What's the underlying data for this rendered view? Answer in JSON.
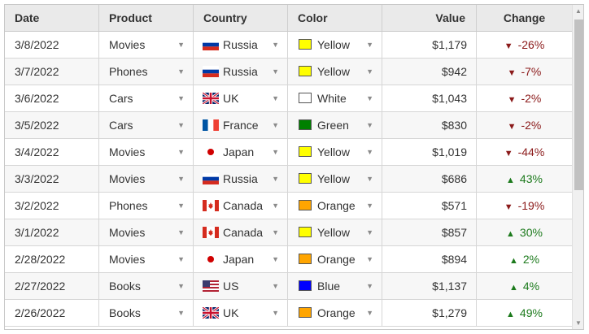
{
  "columns": {
    "date": "Date",
    "product": "Product",
    "country": "Country",
    "color": "Color",
    "value": "Value",
    "change": "Change"
  },
  "icons": {
    "dropdown": "▼",
    "up": "▲",
    "down": "▼"
  },
  "colors": {
    "down": "#8b1a1a",
    "up": "#1c7a1c",
    "header_bg": "#eaeaea",
    "alt_row_bg": "#f7f7f7"
  },
  "rows": [
    {
      "date": "3/8/2022",
      "product": "Movies",
      "country": "Russia",
      "flag": "russia",
      "color": "Yellow",
      "swatch": "#ffff00",
      "value": "$1,179",
      "trend": "down",
      "change": "-26%"
    },
    {
      "date": "3/7/2022",
      "product": "Phones",
      "country": "Russia",
      "flag": "russia",
      "color": "Yellow",
      "swatch": "#ffff00",
      "value": "$942",
      "trend": "down",
      "change": "-7%"
    },
    {
      "date": "3/6/2022",
      "product": "Cars",
      "country": "UK",
      "flag": "uk",
      "color": "White",
      "swatch": "#ffffff",
      "value": "$1,043",
      "trend": "down",
      "change": "-2%"
    },
    {
      "date": "3/5/2022",
      "product": "Cars",
      "country": "France",
      "flag": "france",
      "color": "Green",
      "swatch": "#008000",
      "value": "$830",
      "trend": "down",
      "change": "-2%"
    },
    {
      "date": "3/4/2022",
      "product": "Movies",
      "country": "Japan",
      "flag": "japan",
      "color": "Yellow",
      "swatch": "#ffff00",
      "value": "$1,019",
      "trend": "down",
      "change": "-44%"
    },
    {
      "date": "3/3/2022",
      "product": "Movies",
      "country": "Russia",
      "flag": "russia",
      "color": "Yellow",
      "swatch": "#ffff00",
      "value": "$686",
      "trend": "up",
      "change": "43%"
    },
    {
      "date": "3/2/2022",
      "product": "Phones",
      "country": "Canada",
      "flag": "canada",
      "color": "Orange",
      "swatch": "#ffa500",
      "value": "$571",
      "trend": "down",
      "change": "-19%"
    },
    {
      "date": "3/1/2022",
      "product": "Movies",
      "country": "Canada",
      "flag": "canada",
      "color": "Yellow",
      "swatch": "#ffff00",
      "value": "$857",
      "trend": "up",
      "change": "30%"
    },
    {
      "date": "2/28/2022",
      "product": "Movies",
      "country": "Japan",
      "flag": "japan",
      "color": "Orange",
      "swatch": "#ffa500",
      "value": "$894",
      "trend": "up",
      "change": "2%"
    },
    {
      "date": "2/27/2022",
      "product": "Books",
      "country": "US",
      "flag": "us",
      "color": "Blue",
      "swatch": "#0000ff",
      "value": "$1,137",
      "trend": "up",
      "change": "4%"
    },
    {
      "date": "2/26/2022",
      "product": "Books",
      "country": "UK",
      "flag": "uk",
      "color": "Orange",
      "swatch": "#ffa500",
      "value": "$1,279",
      "trend": "up",
      "change": "49%"
    }
  ]
}
